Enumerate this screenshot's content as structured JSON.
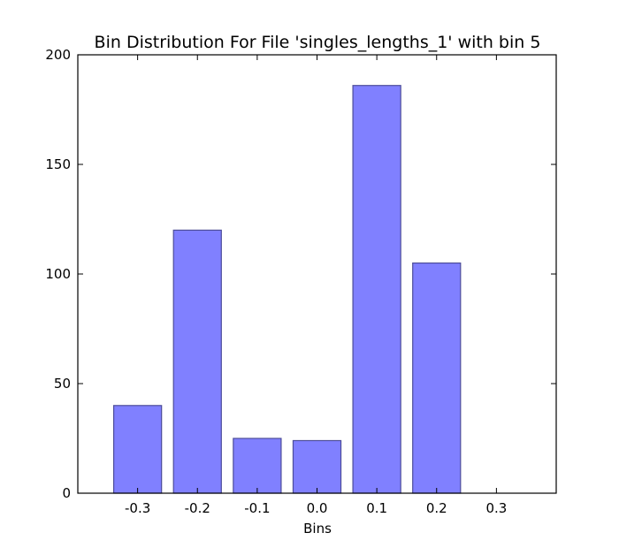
{
  "chart_data": {
    "type": "bar",
    "title": "Bin Distribution For File 'singles_lengths_1' with bin 5",
    "xlabel": "Bins",
    "ylabel": "",
    "x_tick_labels": [
      "-0.3",
      "-0.2",
      "-0.1",
      "0.0",
      "0.1",
      "0.2",
      "0.3"
    ],
    "y_tick_labels": [
      "0",
      "50",
      "100",
      "150",
      "200"
    ],
    "categories": [
      "-0.3",
      "-0.2",
      "-0.1",
      "0.0",
      "0.1",
      "0.2"
    ],
    "values": [
      40,
      120,
      25,
      24,
      186,
      105
    ],
    "ylim": [
      0,
      200
    ],
    "grid": false,
    "colors": {
      "bar_fill": "#8080ff",
      "bar_stroke": "#4d4d99",
      "axis": "#000000",
      "background": "#ffffff"
    }
  }
}
